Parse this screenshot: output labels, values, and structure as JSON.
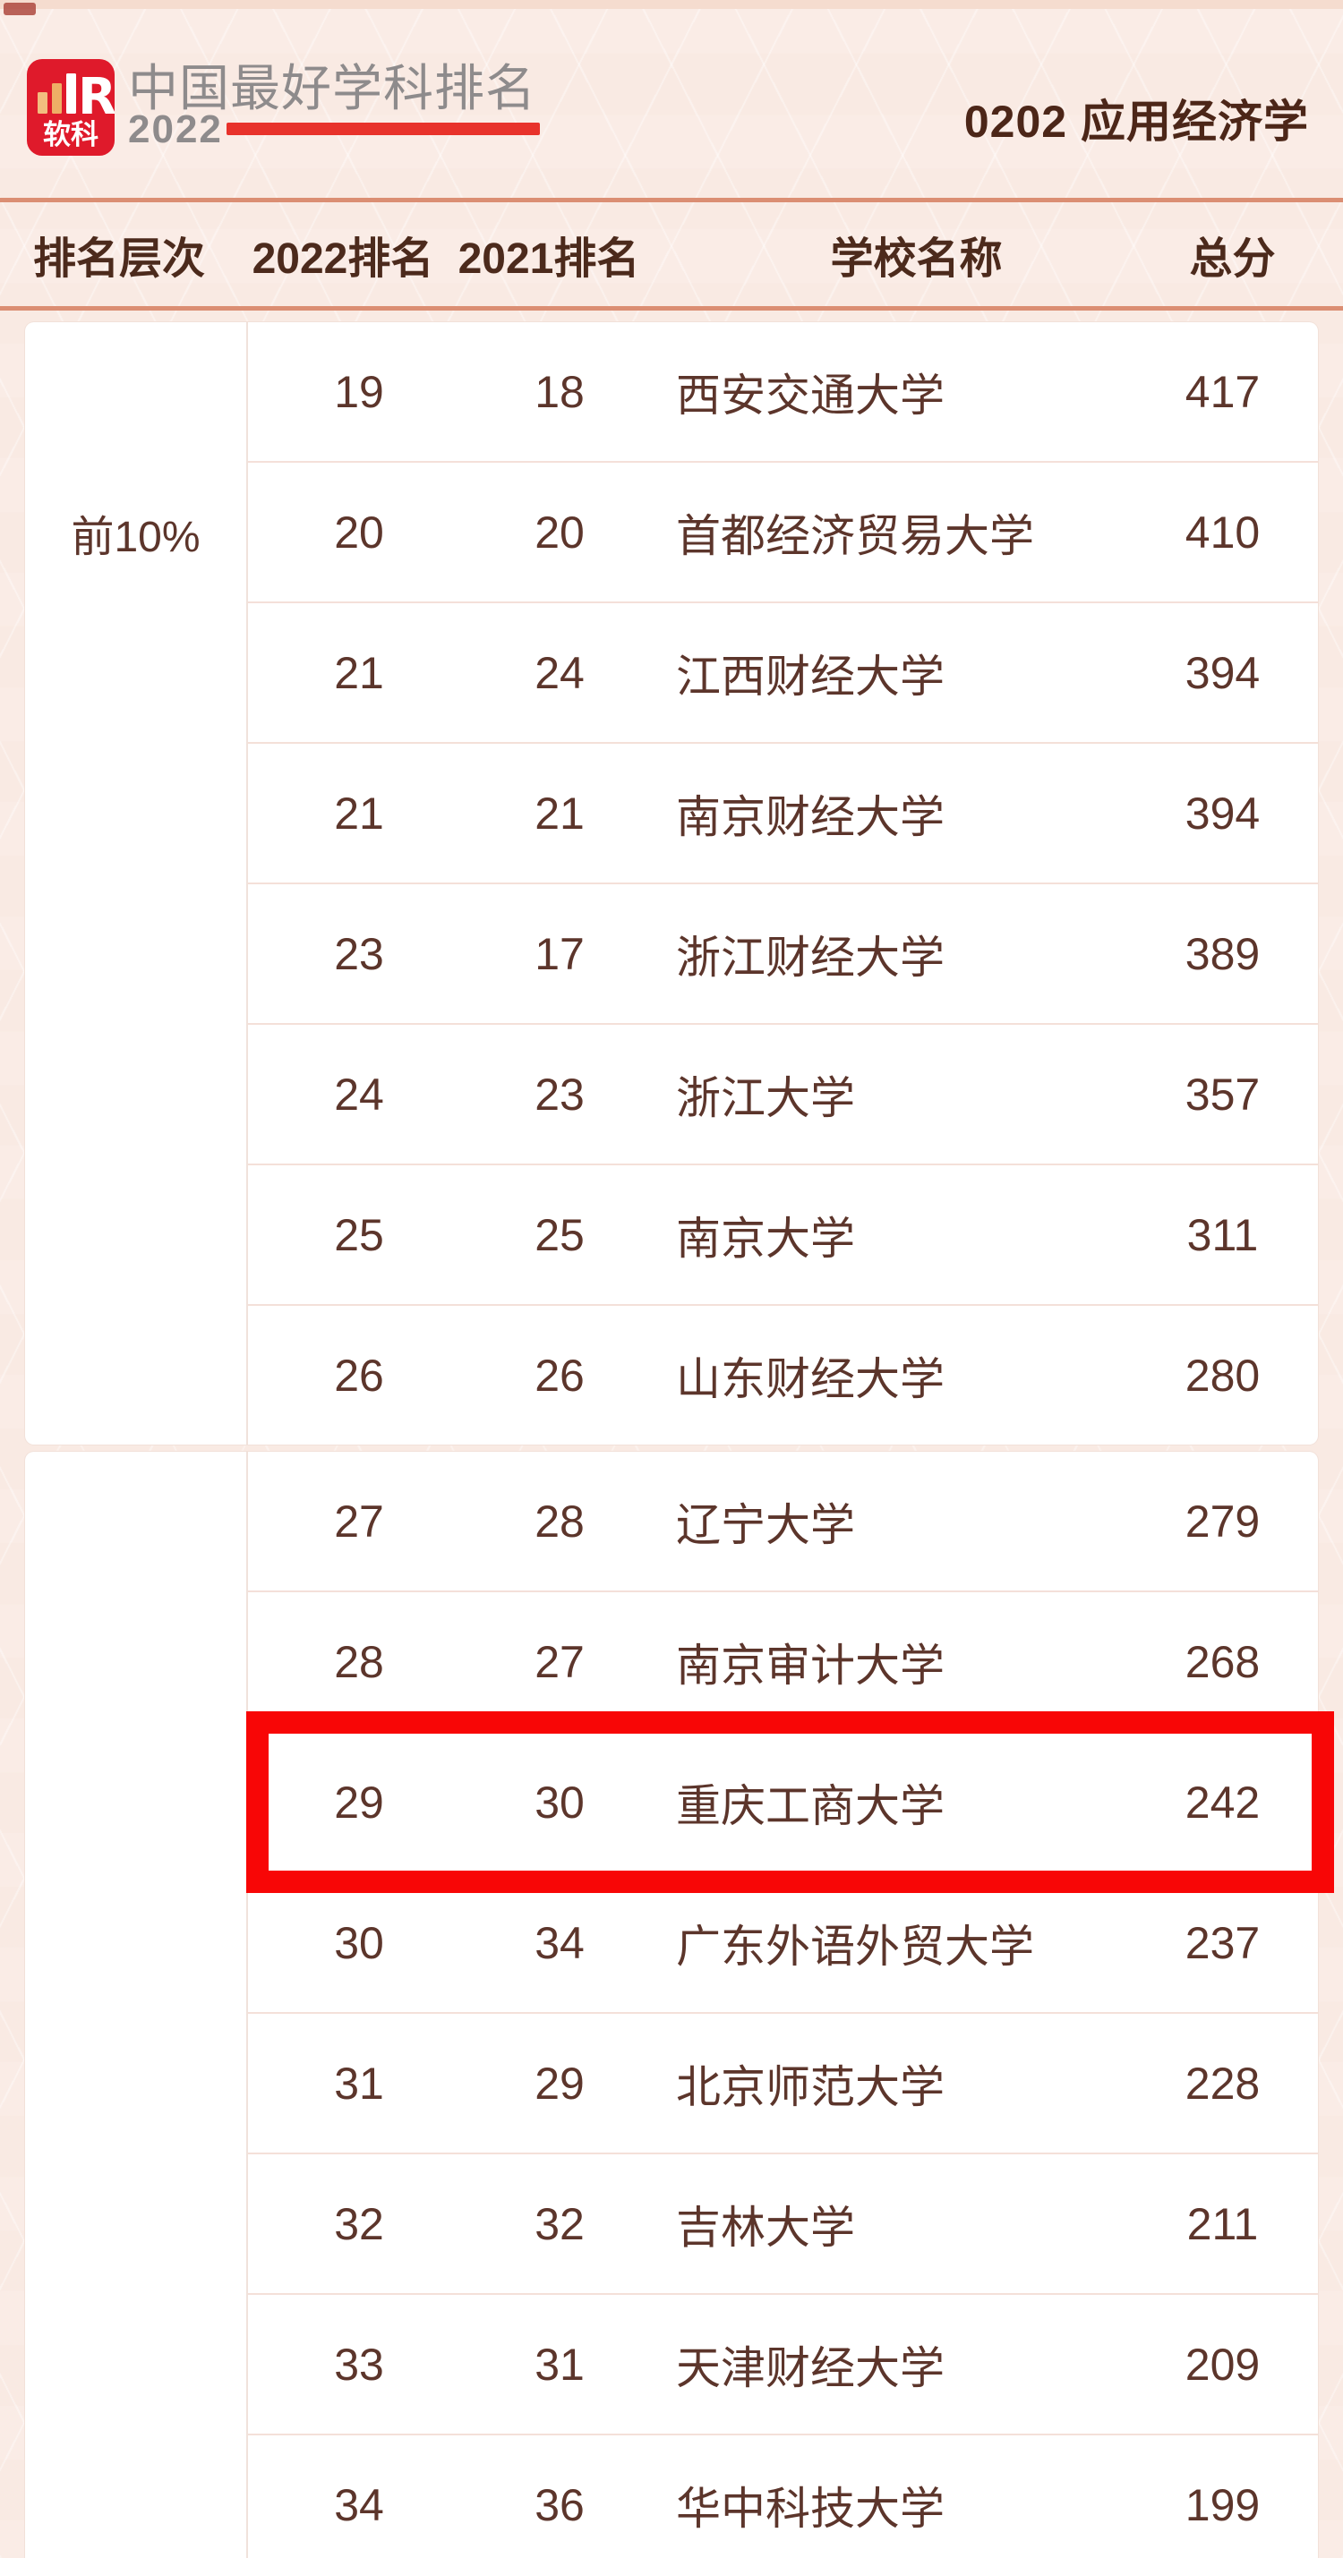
{
  "header": {
    "logo": {
      "name": "软科",
      "letter": "R"
    },
    "title": "中国最好学科排名",
    "year": "2022",
    "subject_code_title": "0202 应用经济学"
  },
  "table": {
    "columns": [
      "排名层次",
      "2022排名",
      "2021排名",
      "学校名称",
      "总分"
    ],
    "groups": [
      {
        "tier": "前10%",
        "rows": [
          {
            "rank_2022": "19",
            "rank_2021": "18",
            "school": "西安交通大学",
            "score": "417"
          },
          {
            "rank_2022": "20",
            "rank_2021": "20",
            "school": "首都经济贸易大学",
            "score": "410"
          },
          {
            "rank_2022": "21",
            "rank_2021": "24",
            "school": "江西财经大学",
            "score": "394"
          },
          {
            "rank_2022": "21",
            "rank_2021": "21",
            "school": "南京财经大学",
            "score": "394"
          },
          {
            "rank_2022": "23",
            "rank_2021": "17",
            "school": "浙江财经大学",
            "score": "389"
          },
          {
            "rank_2022": "24",
            "rank_2021": "23",
            "school": "浙江大学",
            "score": "357"
          },
          {
            "rank_2022": "25",
            "rank_2021": "25",
            "school": "南京大学",
            "score": "311"
          },
          {
            "rank_2022": "26",
            "rank_2021": "26",
            "school": "山东财经大学",
            "score": "280"
          }
        ]
      },
      {
        "tier": "",
        "rows": [
          {
            "rank_2022": "27",
            "rank_2021": "28",
            "school": "辽宁大学",
            "score": "279"
          },
          {
            "rank_2022": "28",
            "rank_2021": "27",
            "school": "南京审计大学",
            "score": "268"
          },
          {
            "rank_2022": "29",
            "rank_2021": "30",
            "school": "重庆工商大学",
            "score": "242",
            "highlight": true
          },
          {
            "rank_2022": "30",
            "rank_2021": "34",
            "school": "广东外语外贸大学",
            "score": "237"
          },
          {
            "rank_2022": "31",
            "rank_2021": "29",
            "school": "北京师范大学",
            "score": "228"
          },
          {
            "rank_2022": "32",
            "rank_2021": "32",
            "school": "吉林大学",
            "score": "211"
          },
          {
            "rank_2022": "33",
            "rank_2021": "31",
            "school": "天津财经大学",
            "score": "209"
          },
          {
            "rank_2022": "34",
            "rank_2021": "36",
            "school": "华中科技大学",
            "score": "199"
          }
        ]
      }
    ]
  },
  "colors": {
    "page_bg": "#f9eae3",
    "accent_salmon": "#db8e73",
    "accent_red": "#e8322b",
    "logo_red": "#df1a2b",
    "highlight_red": "#f80606",
    "text_brown": "#4c2a1c",
    "row_text": "#5c352b",
    "title_gray": "#8e8b8c"
  }
}
